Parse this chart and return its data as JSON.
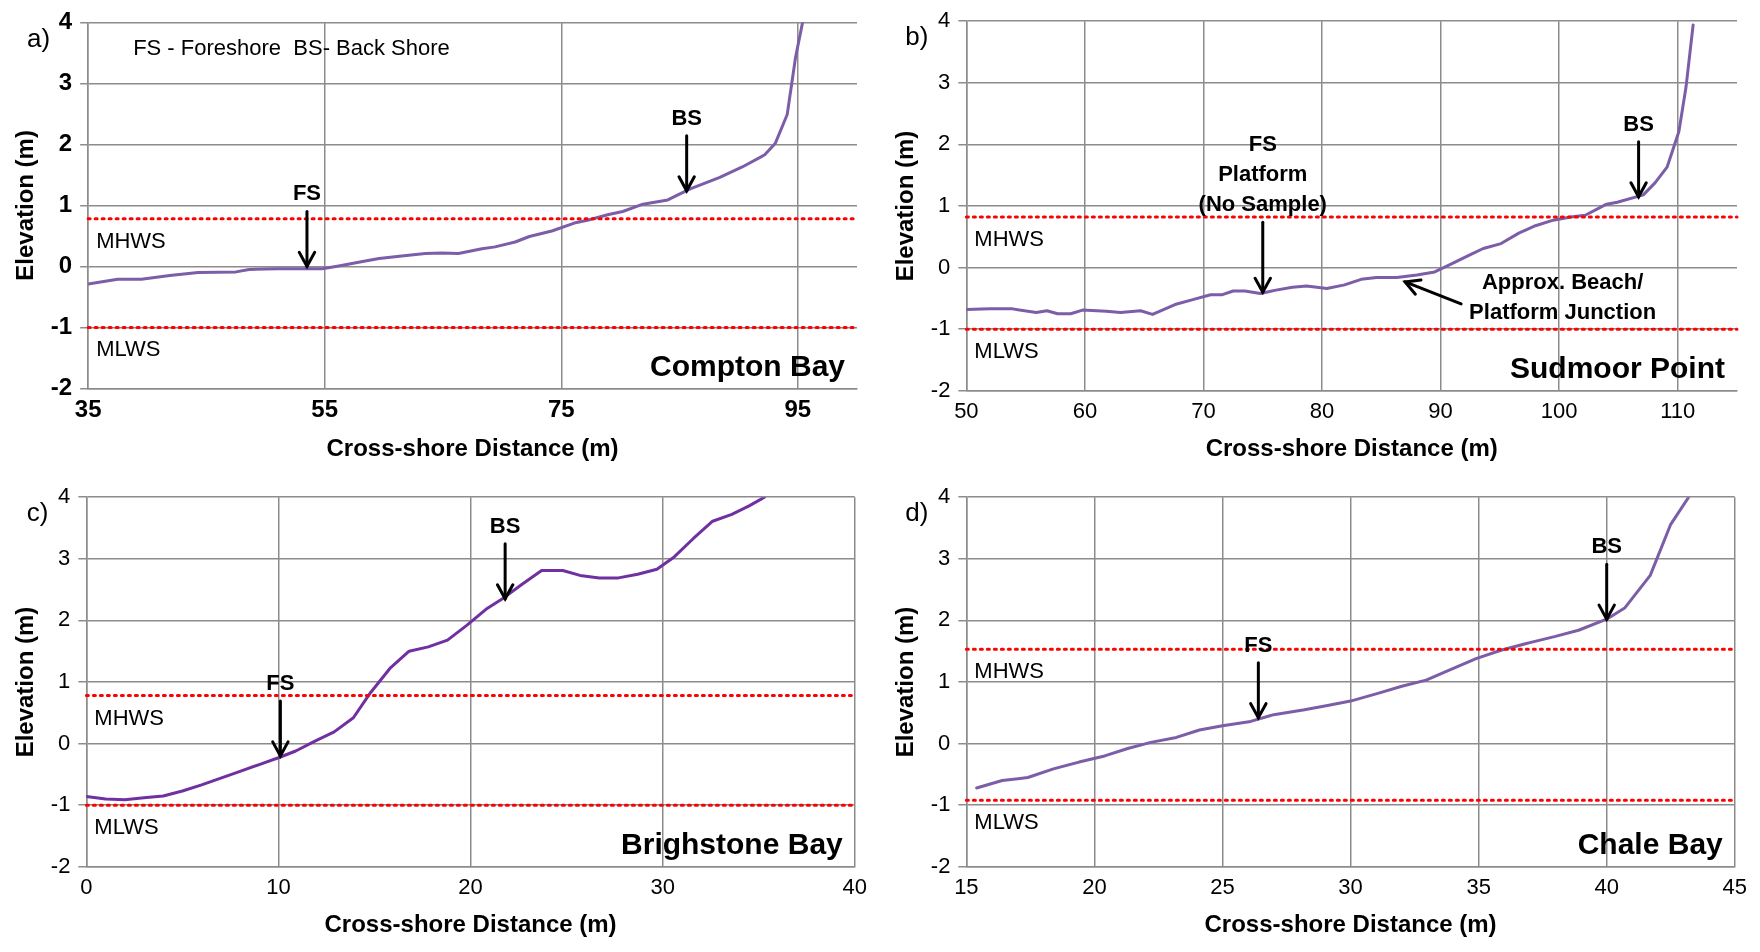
{
  "chart_data": [
    {
      "type": "line",
      "title": "Compton Bay",
      "xlabel": "Cross-shore Distance (m)",
      "ylabel": "Elevation (m)",
      "xlim": [
        35,
        100
      ],
      "xticks": [
        35,
        55,
        75,
        95
      ],
      "ylim": [
        -2,
        4
      ],
      "yticks": [
        -2,
        -1,
        0,
        1,
        2,
        3,
        4
      ],
      "grid": true,
      "color": "#7b5ea7",
      "x": [
        35,
        37.5,
        39.5,
        41.9,
        44.3,
        47.5,
        48.6,
        51,
        52.9,
        54.8,
        56.3,
        58.2,
        59.6,
        61.5,
        63.5,
        64.9,
        66.3,
        68.3,
        69.4,
        71.1,
        72.3,
        74.2,
        76.1,
        77.3,
        79,
        80.2,
        81.9,
        84,
        85.9,
        88.4,
        90.3,
        92.2,
        93.1,
        94.1,
        94.8,
        95.4
      ],
      "values": [
        -0.29,
        -0.21,
        -0.21,
        -0.15,
        -0.1,
        -0.09,
        -0.05,
        -0.04,
        -0.04,
        -0.04,
        0.01,
        0.08,
        0.13,
        0.17,
        0.21,
        0.22,
        0.21,
        0.29,
        0.32,
        0.4,
        0.49,
        0.58,
        0.71,
        0.76,
        0.85,
        0.9,
        1.02,
        1.09,
        1.27,
        1.46,
        1.63,
        1.83,
        2.02,
        2.49,
        3.42,
        4.0
      ],
      "ref_lines": [
        {
          "axis": "y",
          "value": 0.78,
          "label": "MHWS",
          "color": "#ff0000",
          "line_style": "dotted"
        },
        {
          "axis": "y",
          "value": -1,
          "label": "MLWS",
          "color": "#ff0000",
          "line_style": "dotted"
        }
      ],
      "annotations": [
        "a)",
        "FS - Foreshore  BS- Back Shore",
        {
          "text": "FS",
          "x": 53.5,
          "y": 0
        },
        {
          "text": "BS",
          "x": 85.6,
          "y": 1.24
        }
      ]
    },
    {
      "type": "line",
      "title": "Sudmoor Point",
      "xlabel": "Cross-shore Distance (m)",
      "ylabel": "Elevation (m)",
      "xlim": [
        50,
        115
      ],
      "xticks": [
        50,
        60,
        70,
        80,
        90,
        100,
        110
      ],
      "ylim": [
        -2,
        4
      ],
      "yticks": [
        -2,
        -1,
        0,
        1,
        2,
        3,
        4
      ],
      "grid": true,
      "color": "#7b5ea7",
      "x": [
        50,
        52,
        53.9,
        55.9,
        56.8,
        57.7,
        58.8,
        59.8,
        61.8,
        63,
        64.7,
        65.7,
        67.6,
        69.1,
        70.6,
        71.6,
        72.5,
        73.5,
        74.8,
        76,
        77.5,
        78.7,
        80.4,
        81.9,
        83.3,
        84.6,
        86.3,
        88,
        89.5,
        90.7,
        92.6,
        93.6,
        95.1,
        96.6,
        98,
        99.5,
        101,
        102.2,
        104,
        104.9,
        107.1,
        108.1,
        109.1,
        110.1,
        110.7,
        111.3
      ],
      "values": [
        -0.68,
        -0.67,
        -0.67,
        -0.73,
        -0.7,
        -0.75,
        -0.75,
        -0.69,
        -0.71,
        -0.73,
        -0.7,
        -0.76,
        -0.6,
        -0.52,
        -0.44,
        -0.44,
        -0.38,
        -0.38,
        -0.42,
        -0.37,
        -0.32,
        -0.3,
        -0.34,
        -0.28,
        -0.19,
        -0.16,
        -0.16,
        -0.12,
        -0.07,
        0.04,
        0.22,
        0.31,
        0.39,
        0.56,
        0.68,
        0.77,
        0.82,
        0.85,
        1.03,
        1.06,
        1.18,
        1.38,
        1.63,
        2.21,
        2.93,
        3.94
      ],
      "ref_lines": [
        {
          "axis": "y",
          "value": 0.82,
          "label": "MHWS",
          "color": "#ff0000",
          "line_style": "dotted"
        },
        {
          "axis": "y",
          "value": -1,
          "label": "MLWS",
          "color": "#ff0000",
          "line_style": "dotted"
        }
      ],
      "annotations": [
        "b)",
        {
          "text": "FS\nPlatform\n(No Sample)",
          "x": 75,
          "y": -0.4
        },
        {
          "text": "BS",
          "x": 106.7,
          "y": 1.15
        },
        {
          "text": "Approx. Beach/\nPlatform Junction",
          "x": 86.5,
          "y": -0.2
        }
      ]
    },
    {
      "type": "line",
      "title": "Brighstone Bay",
      "xlabel": "Cross-shore Distance (m)",
      "ylabel": "Elevation (m)",
      "xlim": [
        0,
        40
      ],
      "xticks": [
        0,
        10,
        20,
        30,
        40
      ],
      "ylim": [
        -2,
        4
      ],
      "yticks": [
        -2,
        -1,
        0,
        1,
        2,
        3,
        4
      ],
      "grid": true,
      "color": "#7030a0",
      "x": [
        0,
        1,
        2,
        3,
        4,
        5,
        6,
        7,
        8,
        9,
        10,
        10.9,
        11.9,
        12.9,
        13.9,
        14.8,
        15.8,
        16.8,
        17.8,
        18.8,
        19.8,
        20.8,
        21.7,
        22.7,
        23.7,
        24.8,
        25.7,
        26.7,
        27.7,
        28.7,
        29.7,
        30.6,
        31.6,
        32.6,
        33.6,
        34.5,
        35.3
      ],
      "values": [
        -0.86,
        -0.9,
        -0.91,
        -0.88,
        -0.85,
        -0.77,
        -0.67,
        -0.56,
        -0.45,
        -0.34,
        -0.23,
        -0.12,
        0.04,
        0.19,
        0.42,
        0.83,
        1.22,
        1.5,
        1.57,
        1.68,
        1.92,
        2.18,
        2.36,
        2.59,
        2.81,
        2.81,
        2.73,
        2.69,
        2.69,
        2.75,
        2.83,
        3.03,
        3.33,
        3.61,
        3.72,
        3.86,
        4.0
      ],
      "ref_lines": [
        {
          "axis": "y",
          "value": 0.78,
          "label": "MHWS",
          "color": "#ff0000",
          "line_style": "dotted"
        },
        {
          "axis": "y",
          "value": -1,
          "label": "MLWS",
          "color": "#ff0000",
          "line_style": "dotted"
        }
      ],
      "annotations": [
        "c)",
        {
          "text": "FS",
          "x": 10.1,
          "y": -0.2
        },
        {
          "text": "BS",
          "x": 21.8,
          "y": 2.35
        }
      ]
    },
    {
      "type": "line",
      "title": "Chale Bay",
      "xlabel": "Cross-shore Distance (m)",
      "ylabel": "Elevation (m)",
      "xlim": [
        15,
        45
      ],
      "xticks": [
        15,
        20,
        25,
        30,
        35,
        40,
        45
      ],
      "ylim": [
        -2,
        4
      ],
      "yticks": [
        -2,
        -1,
        0,
        1,
        2,
        3,
        4
      ],
      "grid": true,
      "color": "#7b5ea7",
      "x": [
        15.4,
        16.4,
        17.4,
        18.4,
        19.4,
        20.4,
        21.3,
        22.2,
        23.2,
        24.1,
        25,
        26.1,
        27,
        28.2,
        29.1,
        30,
        31.1,
        32,
        32.95,
        33.9,
        34.9,
        35.9,
        37,
        38,
        38.9,
        40,
        40.7,
        41.7,
        42.5,
        43.2
      ],
      "values": [
        -0.72,
        -0.6,
        -0.55,
        -0.41,
        -0.3,
        -0.2,
        -0.08,
        0.02,
        0.1,
        0.22,
        0.29,
        0.36,
        0.47,
        0.55,
        0.62,
        0.69,
        0.82,
        0.93,
        1.03,
        1.2,
        1.38,
        1.52,
        1.64,
        1.74,
        1.84,
        2.02,
        2.2,
        2.73,
        3.56,
        4.0
      ],
      "ref_lines": [
        {
          "axis": "y",
          "value": 1.53,
          "label": "MHWS",
          "color": "#ff0000",
          "line_style": "dotted"
        },
        {
          "axis": "y",
          "value": -0.92,
          "label": "MLWS",
          "color": "#ff0000",
          "line_style": "dotted"
        }
      ],
      "annotations": [
        "d)",
        {
          "text": "FS",
          "x": 26.4,
          "y": 0.42
        },
        {
          "text": "BS",
          "x": 40,
          "y": 2.02
        }
      ]
    }
  ]
}
